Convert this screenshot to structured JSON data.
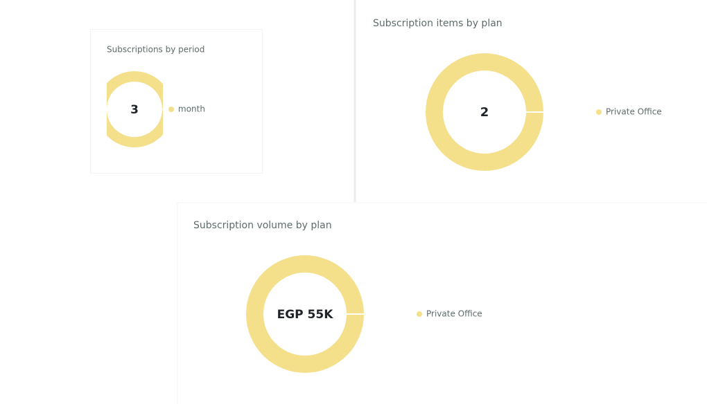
{
  "chart_data": [
    {
      "type": "donut",
      "title": "Subscriptions by period",
      "categories": [
        "month"
      ],
      "values": [
        3
      ],
      "colors": [
        "#f4df8a"
      ],
      "legend": "right"
    },
    {
      "type": "donut",
      "title": "Subscription items by plan",
      "categories": [
        "Private Office"
      ],
      "values": [
        2
      ],
      "colors": [
        "#f4df8a"
      ],
      "legend": "right"
    },
    {
      "type": "donut",
      "title": "Subscription volume by plan",
      "categories": [
        "Private Office"
      ],
      "values": [
        55000
      ],
      "value_labels": [
        "EGP 55K"
      ],
      "colors": [
        "#f4df8a"
      ],
      "legend": "right"
    }
  ]
}
